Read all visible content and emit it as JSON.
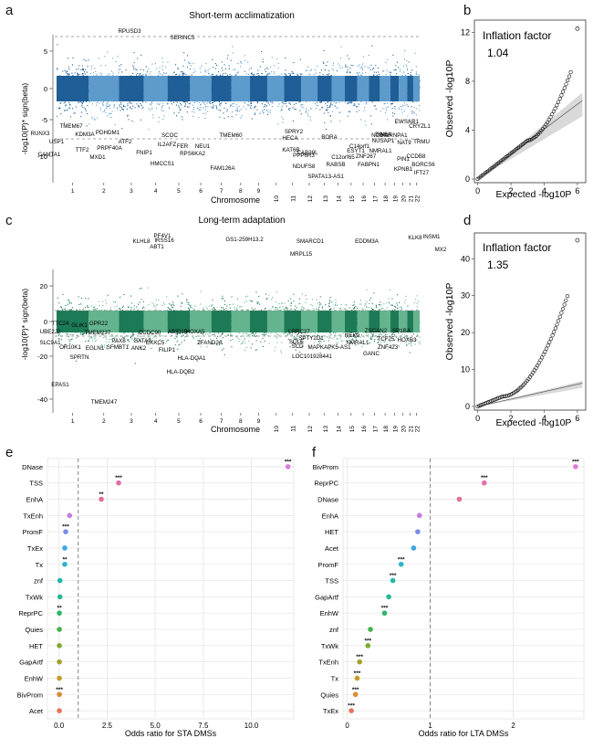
{
  "panels": {
    "a": {
      "letter": "a",
      "title": "Short-term acclimatization",
      "xlabel": "Chromosome",
      "ylabel": "-log10(P)* sign(beta)",
      "yticks": [
        "5",
        "0",
        "-5",
        "-10"
      ],
      "chromosomes": [
        "1",
        "2",
        "3",
        "4",
        "5",
        "6",
        "7",
        "8",
        "9",
        "10",
        "11",
        "12",
        "13",
        "14",
        "15",
        "16",
        "17",
        "18",
        "19",
        "20",
        "21",
        "22"
      ],
      "top_labels": [
        "RPUSD3",
        "SERINC5"
      ],
      "bottom_labels": [
        "TMEM67",
        "RUNX3",
        "KDM3A",
        "PDHDM1",
        "USP1",
        "CAMTA1",
        "TTF2",
        "ATF2",
        "MXD1",
        "PRPF40A",
        "SCOC",
        "IL2AFZ",
        "FNIP1",
        "FER",
        "NEU1",
        "HMCCS1",
        "RPS6KA2",
        "TMEM60",
        "FAM126A",
        "KAT6B",
        "PPP6R3",
        "NDUFS8",
        "SPRY2",
        "HECA",
        "CAB39L",
        "RABSB",
        "BORA",
        "ESYT1",
        "C12orf65",
        "SPATA13-AS1",
        "NCDN",
        "C14orf1",
        "SIN3A",
        "NUSAP1",
        "ZNF267",
        "NMRAL1",
        "FABPN1",
        "EWSAR1",
        "NAT9",
        "PIN1",
        "KPNB1",
        "HNRNPA1",
        "CRYZL1",
        "CCDB8",
        "BORCS6",
        "TRMU",
        "IFT27"
      ]
    },
    "b": {
      "letter": "b",
      "inflation_label": "Inflation factor",
      "inflation_value": "1.04",
      "xlabel": "Expected -log10P",
      "ylabel": "Observed -log10P",
      "xticks": [
        "0",
        "2",
        "4",
        "6"
      ],
      "yticks": [
        "0",
        "4",
        "8",
        "12"
      ]
    },
    "c": {
      "letter": "c",
      "title": "Long-term adaptation",
      "xlabel": "Chromosome",
      "ylabel": "-log10(P)* sign(beta)",
      "yticks": [
        "20",
        "0",
        "-20",
        "-40"
      ],
      "chromosomes": [
        "1",
        "2",
        "3",
        "4",
        "5",
        "6",
        "7",
        "8",
        "9",
        "10",
        "11",
        "12",
        "13",
        "14",
        "15",
        "16",
        "17",
        "18",
        "19",
        "20",
        "21",
        "22"
      ],
      "top_labels": [
        "PF4V1",
        "KLHL8",
        "IRSS16",
        "ABT1",
        "GS1-259H13.2",
        "MRPL15",
        "SMARCD1",
        "EDDM3A",
        "KLK8",
        "INSM1",
        "MX2"
      ],
      "bottom_labels": [
        "TTC24",
        "GLIK1",
        "UBE2J2",
        "SLC9A1",
        "OR10K1",
        "TMEM237",
        "SPRTN",
        "EGLN1",
        "PAX8",
        "SFMBT1",
        "GPR22",
        "CCDC90",
        "GATA2",
        "ANK2",
        "CXXC5",
        "ABID1B",
        "HOXA5",
        "FILIP1",
        "HLA-DQA1",
        "HLA-DQB2",
        "ZFAND2A",
        "LRRC27",
        "SQLE",
        "SCD",
        "SPTY2D1",
        "LOC101928441",
        "MAPKAPK5-AS1",
        "NEK9",
        "NMRAL1",
        "GANC",
        "ZSCAN2",
        "SP1BA",
        "TCF25",
        "HOXB3",
        "ZNF423",
        "EPAS1",
        "TMEM247"
      ]
    },
    "d": {
      "letter": "d",
      "inflation_label": "Inflation factor",
      "inflation_value": "1.35",
      "xlabel": "Expected -log10P",
      "ylabel": "Observed -log10P",
      "xticks": [
        "0",
        "2",
        "4",
        "6"
      ],
      "yticks": [
        "0",
        "10",
        "20",
        "30",
        "40"
      ]
    },
    "e": {
      "letter": "e",
      "xlabel": "Odds ratio for STA DMSs",
      "xticks": [
        "0.0",
        "2.5",
        "5.0",
        "7.5",
        "10.0"
      ]
    },
    "f": {
      "letter": "f",
      "xlabel": "Odds ratio for LTA DMSs",
      "xticks": [
        "0",
        "1",
        "2"
      ]
    }
  },
  "chart_data": [
    {
      "panel": "e",
      "type": "scatter",
      "xlabel": "Odds ratio for STA DMSs",
      "xlim": [
        -0.6,
        12.2
      ],
      "reference_line": 1,
      "categories": [
        "DNase",
        "TSS",
        "EnhA",
        "TxEnh",
        "PromF",
        "TxEx",
        "Tx",
        "znf",
        "TxWk",
        "ReprPC",
        "Quies",
        "HET",
        "GapArtf",
        "EnhW",
        "BivProm",
        "Acet"
      ],
      "values": [
        11.9,
        3.1,
        2.2,
        0.55,
        0.35,
        0.3,
        0.3,
        0.05,
        0.05,
        0.02,
        0.02,
        0.02,
        0.02,
        0.02,
        0.02,
        0.02
      ],
      "significance": [
        "***",
        "***",
        "**",
        "",
        "***",
        "",
        "**",
        "",
        "",
        "**",
        "",
        "",
        "",
        "",
        "***",
        ""
      ],
      "colors": [
        "#e07ad6",
        "#e06fae",
        "#e06f9b",
        "#c77be0",
        "#7a8de3",
        "#3fa6e0",
        "#2fb3c8",
        "#25b8a8",
        "#27b891",
        "#2db66a",
        "#46b14a",
        "#7faa2e",
        "#a4a22a",
        "#c79a27",
        "#d98a33",
        "#e6745c"
      ]
    },
    {
      "panel": "f",
      "type": "scatter",
      "xlabel": "Odds ratio for LTA DMSs",
      "xlim": [
        -0.05,
        2.85
      ],
      "reference_line": 1,
      "categories": [
        "BivProm",
        "ReprPC",
        "DNase",
        "EnhA",
        "HET",
        "Acet",
        "PromF",
        "TSS",
        "GapArtf",
        "EnhW",
        "znf",
        "TxWk",
        "TxEnh",
        "Tx",
        "Quies",
        "TxEx"
      ],
      "values": [
        2.75,
        1.65,
        1.35,
        0.87,
        0.85,
        0.8,
        0.65,
        0.55,
        0.5,
        0.45,
        0.28,
        0.25,
        0.15,
        0.12,
        0.1,
        0.05
      ],
      "significance": [
        "***",
        "***",
        "",
        "",
        "",
        "",
        "***",
        "***",
        "",
        "***",
        "",
        "***",
        "***",
        "***",
        "***",
        "***"
      ],
      "colors": [
        "#e07ad6",
        "#e06fae",
        "#e06f9b",
        "#c77be0",
        "#7a8de3",
        "#3fa6e0",
        "#2fb3c8",
        "#25b8a8",
        "#27b891",
        "#2db66a",
        "#46b14a",
        "#7faa2e",
        "#a4a22a",
        "#c79a27",
        "#d98a33",
        "#e6745c"
      ]
    },
    {
      "panel": "b",
      "type": "scatter",
      "xlabel": "Expected -log10P",
      "ylabel": "Observed -log10P",
      "xlim": [
        -0.2,
        6.5
      ],
      "ylim": [
        -0.3,
        13
      ],
      "inflation_factor": 1.04,
      "max_point": [
        6,
        12.3
      ]
    },
    {
      "panel": "d",
      "type": "scatter",
      "xlabel": "Expected -log10P",
      "ylabel": "Observed -log10P",
      "xlim": [
        -0.2,
        6.5
      ],
      "ylim": [
        -1,
        47
      ],
      "inflation_factor": 1.35,
      "max_point": [
        6,
        45
      ]
    }
  ]
}
